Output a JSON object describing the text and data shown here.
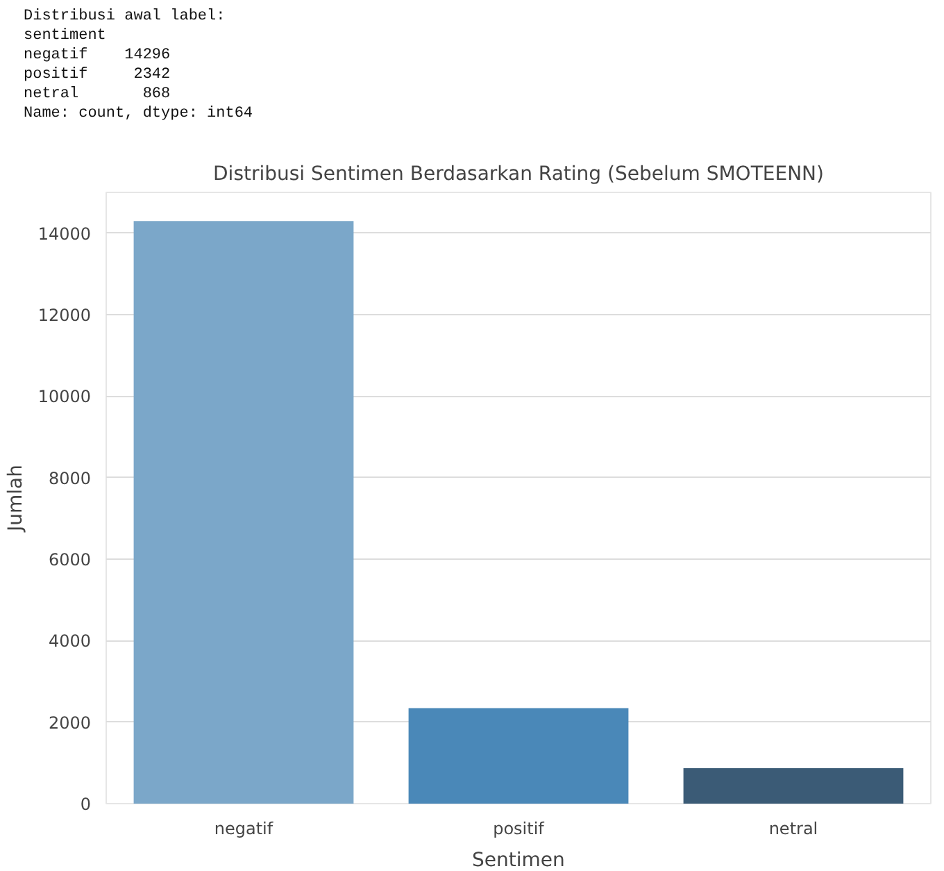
{
  "chart_data": {
    "type": "bar",
    "title": "Distribusi Sentimen Berdasarkan Rating (Sebelum SMOTEENN)",
    "xlabel": "Sentimen",
    "ylabel": "Jumlah",
    "categories": [
      "negatif",
      "positif",
      "netral"
    ],
    "values": [
      14296,
      2342,
      868
    ],
    "colors": [
      "#7ba7c9",
      "#4a88b8",
      "#3b5b76"
    ],
    "ylim": [
      0,
      15000
    ],
    "yticks": [
      0,
      2000,
      4000,
      6000,
      8000,
      10000,
      12000,
      14000
    ],
    "grid": "y",
    "annotations": [
      "Distribusi awal label:",
      "sentiment",
      "negatif    14296",
      "positif     2342",
      "netral       868",
      "Name: count, dtype: int64"
    ]
  }
}
